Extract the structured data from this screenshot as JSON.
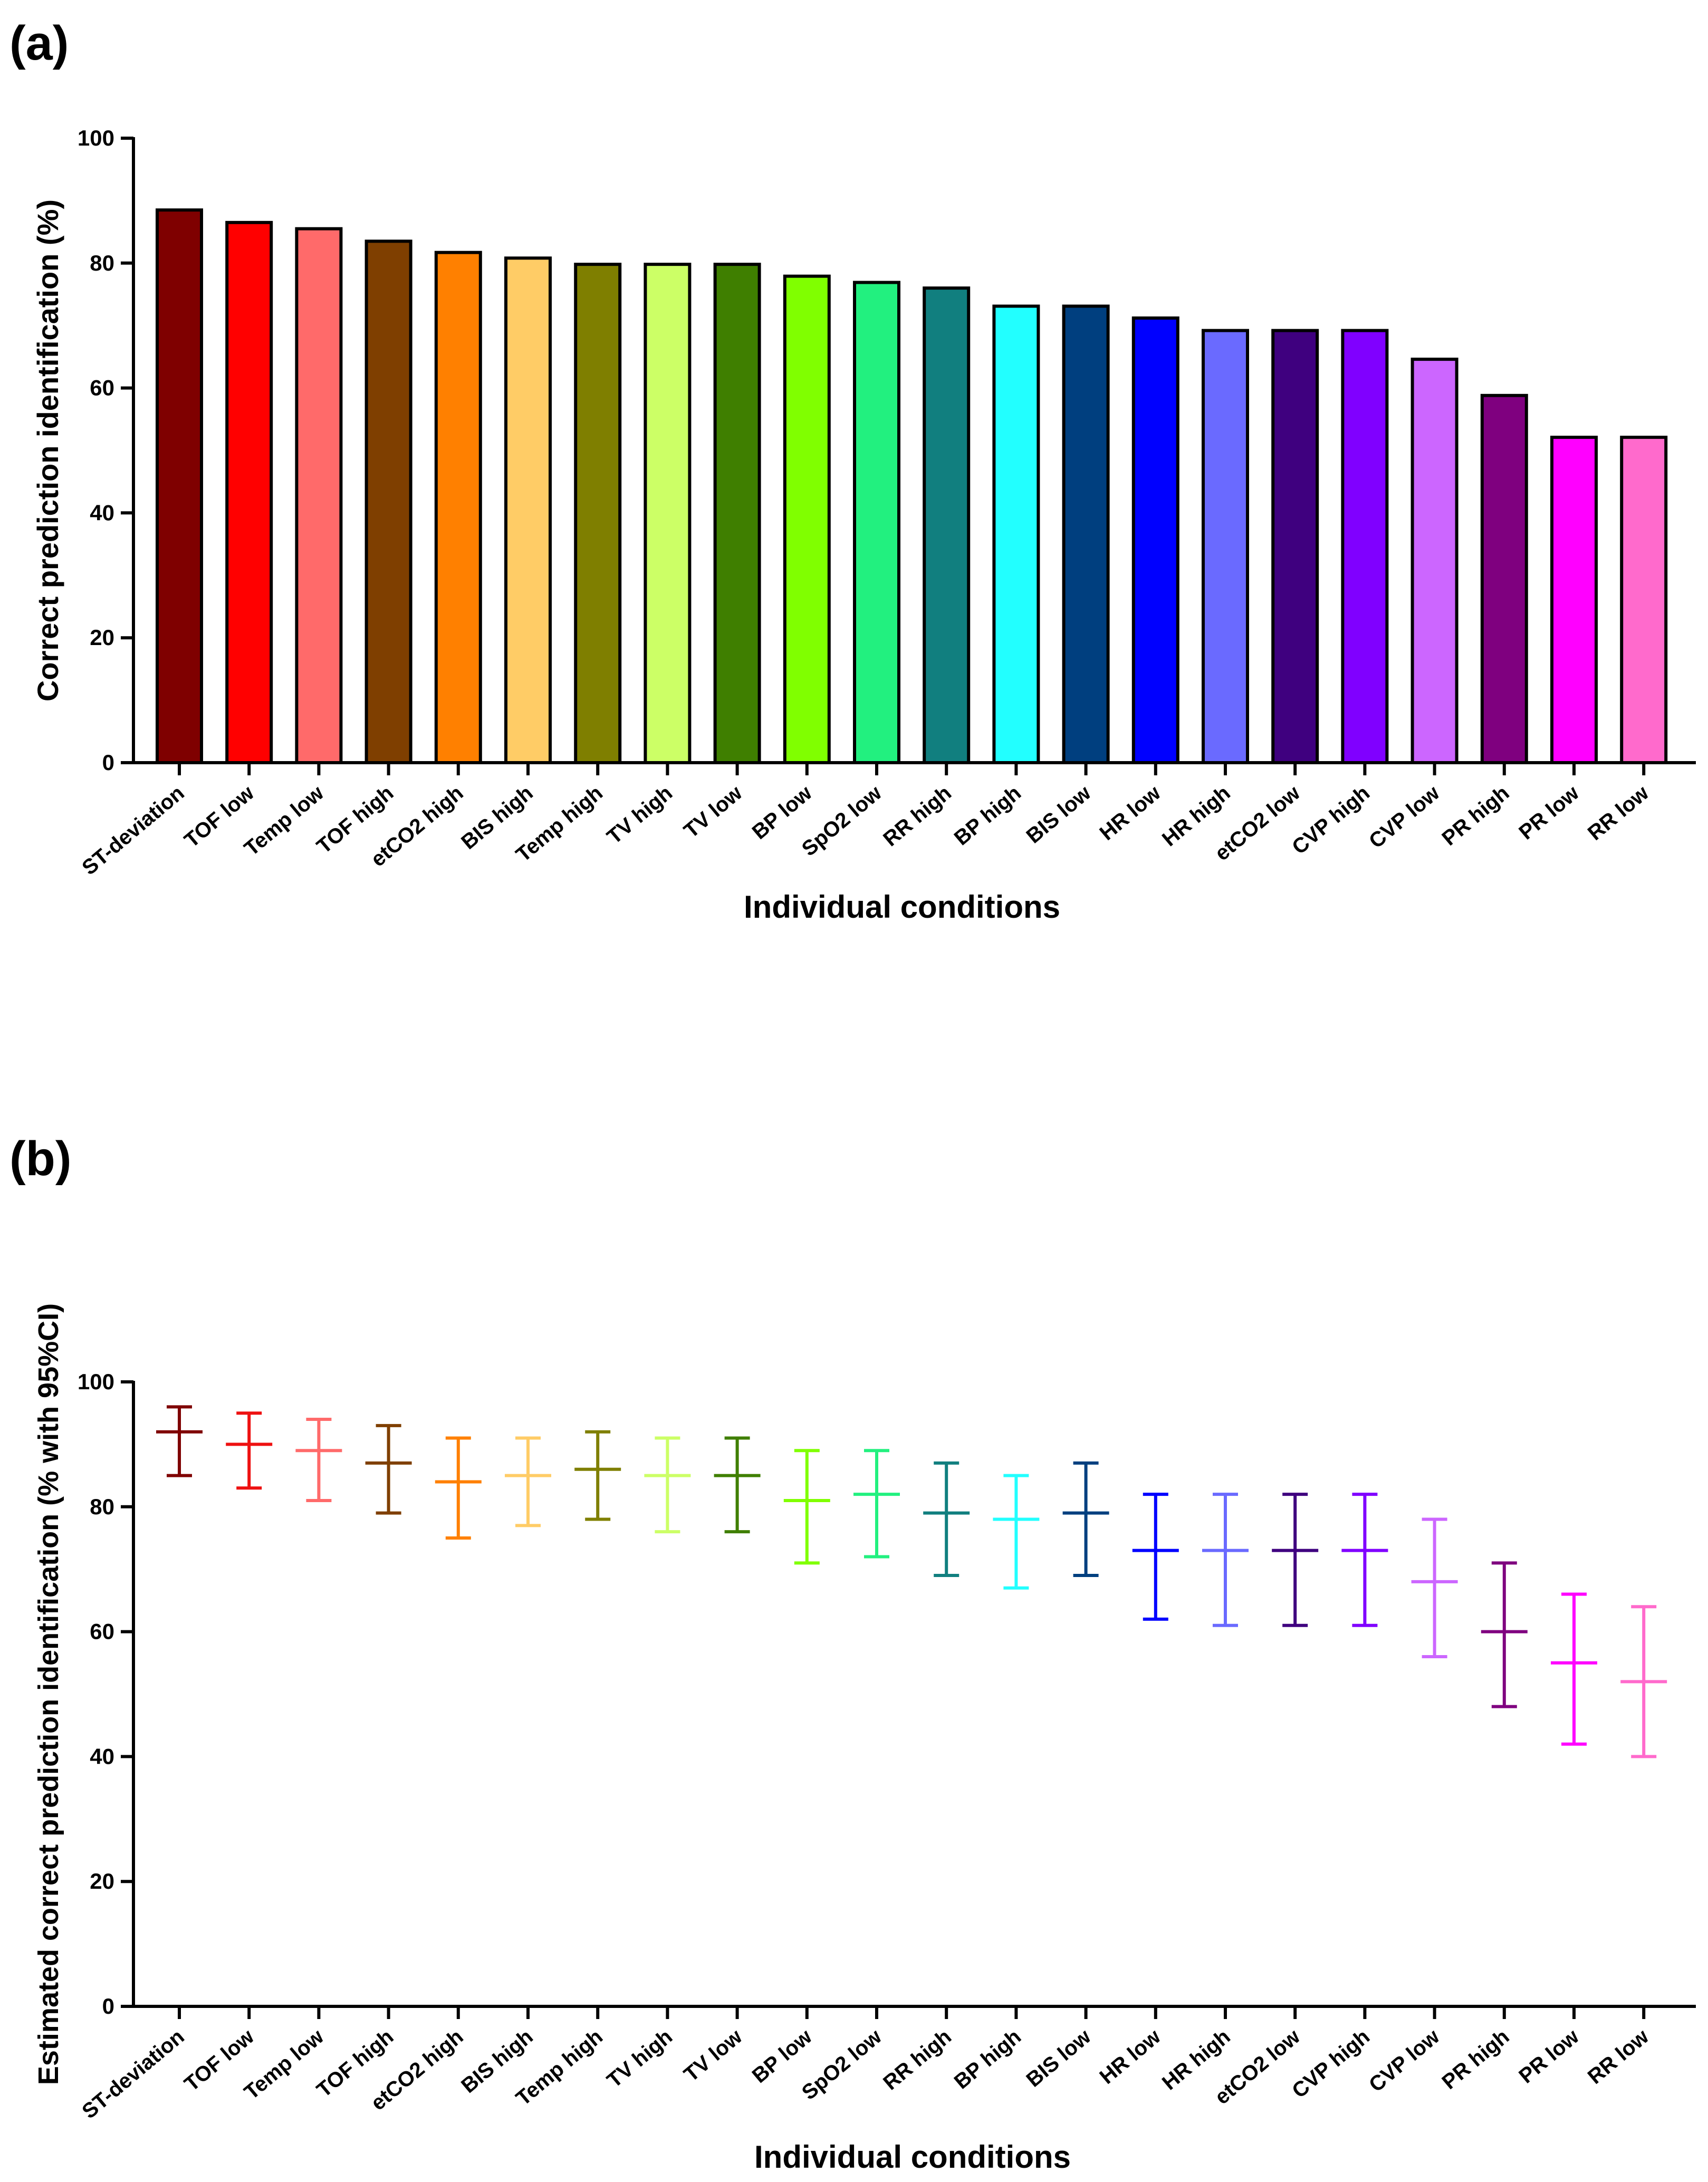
{
  "panels": [
    {
      "label": "(a)"
    },
    {
      "label": "(b)"
    }
  ],
  "chart_data": [
    {
      "type": "bar",
      "panel": "(a)",
      "title": "",
      "xlabel": "Individual conditions",
      "ylabel": "Correct prediction identification (%)",
      "ylim": [
        0,
        100
      ],
      "yticks": [
        0,
        20,
        40,
        60,
        80,
        100
      ],
      "categories": [
        "ST-deviation",
        "TOF low",
        "Temp low",
        "TOF high",
        "etCO2 high",
        "BIS high",
        "Temp high",
        "TV high",
        "TV low",
        "BP low",
        "SpO2 low",
        "RR high",
        "BP high",
        "BIS low",
        "HR low",
        "HR high",
        "etCO2 low",
        "CVP high",
        "CVP low",
        "PR high",
        "PR low",
        "RR low"
      ],
      "values": [
        88.5,
        86.5,
        85.5,
        83.5,
        81.7,
        80.8,
        79.8,
        79.8,
        79.8,
        77.9,
        76.9,
        76.0,
        73.1,
        73.1,
        71.2,
        69.2,
        69.2,
        69.2,
        64.6,
        58.8,
        52.1,
        52.1
      ],
      "colors": [
        "#7f0000",
        "#ff0000",
        "#ff6a6a",
        "#7f3f00",
        "#ff8000",
        "#ffcc66",
        "#7f7f00",
        "#ccff66",
        "#3f7f00",
        "#80ff00",
        "#22f07f",
        "#117f7f",
        "#22ffff",
        "#003f7f",
        "#0000ff",
        "#6a6aff",
        "#3f007f",
        "#8000ff",
        "#cc66ff",
        "#7f007f",
        "#ff00ff",
        "#ff6acc"
      ]
    },
    {
      "type": "errorbar",
      "panel": "(b)",
      "title": "",
      "xlabel": "Individual conditions",
      "ylabel": "Estimated correct prediction identification (% with 95%CI)",
      "ylim": [
        0,
        100
      ],
      "yticks": [
        0,
        20,
        40,
        60,
        80,
        100
      ],
      "categories": [
        "ST-deviation",
        "TOF low",
        "Temp low",
        "TOF high",
        "etCO2 high",
        "BIS high",
        "Temp high",
        "TV high",
        "TV low",
        "BP low",
        "SpO2 low",
        "RR high",
        "BP high",
        "BIS low",
        "HR low",
        "HR high",
        "etCO2 low",
        "CVP high",
        "CVP low",
        "PR high",
        "PR low",
        "RR low"
      ],
      "estimate": [
        92,
        90,
        89,
        87,
        84,
        85,
        86,
        85,
        85,
        81,
        82,
        79,
        78,
        79,
        73,
        73,
        73,
        73,
        68,
        60,
        55,
        52
      ],
      "ci_low": [
        85,
        83,
        81,
        79,
        75,
        77,
        78,
        76,
        76,
        71,
        72,
        69,
        67,
        69,
        62,
        61,
        61,
        61,
        56,
        48,
        42,
        40
      ],
      "ci_high": [
        96,
        95,
        94,
        93,
        91,
        91,
        92,
        91,
        91,
        89,
        89,
        87,
        85,
        87,
        82,
        82,
        82,
        82,
        78,
        71,
        66,
        64
      ],
      "colors": [
        "#7f0000",
        "#ee1111",
        "#ff6a6a",
        "#7f3f00",
        "#ff8000",
        "#ffcc66",
        "#7f7f00",
        "#ccff66",
        "#3f7f00",
        "#80ff00",
        "#22f07f",
        "#117f7f",
        "#22ffff",
        "#003f7f",
        "#0000ff",
        "#6a6aff",
        "#3f007f",
        "#8000ff",
        "#cc66ff",
        "#7f007f",
        "#ff00ff",
        "#ff6acc"
      ]
    }
  ]
}
